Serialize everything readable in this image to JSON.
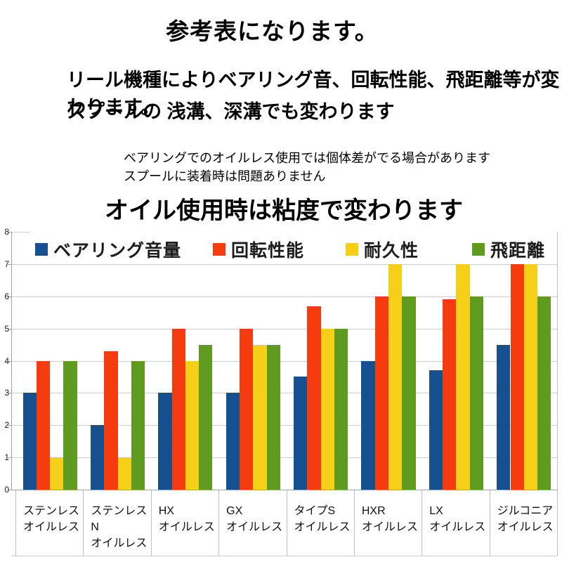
{
  "header": {
    "title": "参考表になります。",
    "desc_line1": "リール機種によりベアリング音、回転性能、飛距離等が変わります。",
    "desc_line2": "スプールの 浅溝、深溝でも変わります",
    "note_line1": "ベアリングでのオイルレス使用では個体差がでる場合があります",
    "note_line2": "スプールに装着時は問題ありません",
    "subtitle": "オイル使用時は粘度で変わります"
  },
  "chart_data": {
    "type": "bar",
    "title": "",
    "xlabel": "",
    "ylabel": "",
    "ylim": [
      0,
      8
    ],
    "yticks": [
      0,
      1,
      2,
      3,
      4,
      5,
      6,
      7,
      8
    ],
    "grid": true,
    "legend_position": "top-inside",
    "categories": [
      "ステンレス\nオイルレス",
      "ステンレスN\nオイルレス",
      "HX\nオイルレス",
      "GX\nオイルレス",
      "タイプS\nオイルレス",
      "HXR\nオイルレス",
      "LX\nオイルレス",
      "ジルコニア\nオイルレス"
    ],
    "series": [
      {
        "name": "ベアリング音量",
        "color": "#17508e",
        "values": [
          3,
          2,
          3,
          3,
          3.5,
          4,
          3.7,
          4.5
        ]
      },
      {
        "name": "回転性能",
        "color": "#f43c0e",
        "values": [
          4,
          4.3,
          5,
          5,
          5.7,
          6,
          5.9,
          7
        ]
      },
      {
        "name": "耐久性",
        "color": "#f6d018",
        "values": [
          1,
          1,
          4,
          4.5,
          5,
          7,
          7,
          7
        ]
      },
      {
        "name": "飛距離",
        "color": "#5e9b1f",
        "values": [
          4,
          4,
          4.5,
          4.5,
          5,
          6,
          6,
          6
        ]
      }
    ],
    "colors": {
      "gridline": "#c9cdd5",
      "axis": "#9aa2ab",
      "separator": "#b9bfc7"
    }
  }
}
